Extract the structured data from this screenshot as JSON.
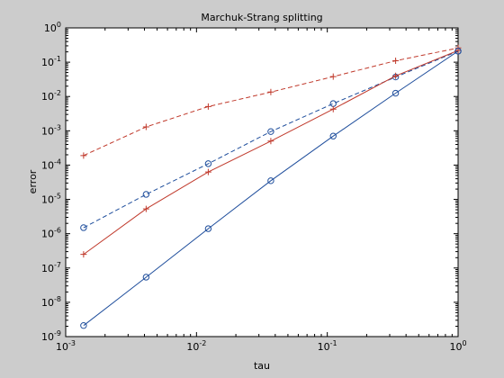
{
  "chart_data": {
    "type": "line",
    "title": "Marchuk-Strang splitting",
    "xlabel": "tau",
    "ylabel": "error",
    "xscale": "log",
    "yscale": "log",
    "xlim": [
      0.001,
      1
    ],
    "ylim": [
      1e-09,
      1
    ],
    "grid": false,
    "x": [
      0.00137,
      0.00412,
      0.0123,
      0.037,
      0.111,
      0.333,
      1
    ],
    "x_ticks": [
      {
        "value": 0.001,
        "base": "10",
        "exp": "-3"
      },
      {
        "value": 0.01,
        "base": "10",
        "exp": "-2"
      },
      {
        "value": 0.1,
        "base": "10",
        "exp": "-1"
      },
      {
        "value": 1,
        "base": "10",
        "exp": "0"
      }
    ],
    "y_ticks": [
      {
        "value": 1,
        "base": "10",
        "exp": "0"
      },
      {
        "value": 0.1,
        "base": "10",
        "exp": "-1"
      },
      {
        "value": 0.01,
        "base": "10",
        "exp": "-2"
      },
      {
        "value": 0.001,
        "base": "10",
        "exp": "-3"
      },
      {
        "value": 0.0001,
        "base": "10",
        "exp": "-4"
      },
      {
        "value": 1e-05,
        "base": "10",
        "exp": "-5"
      },
      {
        "value": 1e-06,
        "base": "10",
        "exp": "-6"
      },
      {
        "value": 1e-07,
        "base": "10",
        "exp": "-7"
      },
      {
        "value": 1e-08,
        "base": "10",
        "exp": "-8"
      },
      {
        "value": 1e-09,
        "base": "10",
        "exp": "-9"
      }
    ],
    "series": [
      {
        "marker": "plus",
        "line": "dashed",
        "color": "#c0392b",
        "values": [
          0.00019,
          0.0013,
          0.0051,
          0.0135,
          0.038,
          0.11,
          0.26
        ]
      },
      {
        "marker": "circle",
        "line": "dashed",
        "color": "#1f4e9c",
        "values": [
          1.5e-06,
          1.4e-05,
          0.00011,
          0.00095,
          0.0062,
          0.037,
          0.21
        ]
      },
      {
        "marker": "plus",
        "line": "solid",
        "color": "#c0392b",
        "values": [
          2.5e-07,
          5.3e-06,
          6.3e-05,
          0.0005,
          0.0043,
          0.04,
          0.22
        ]
      },
      {
        "marker": "circle",
        "line": "solid",
        "color": "#1f4e9c",
        "values": [
          2.1e-09,
          5.4e-08,
          1.4e-06,
          3.5e-05,
          0.0007,
          0.0125,
          0.21
        ]
      }
    ]
  }
}
